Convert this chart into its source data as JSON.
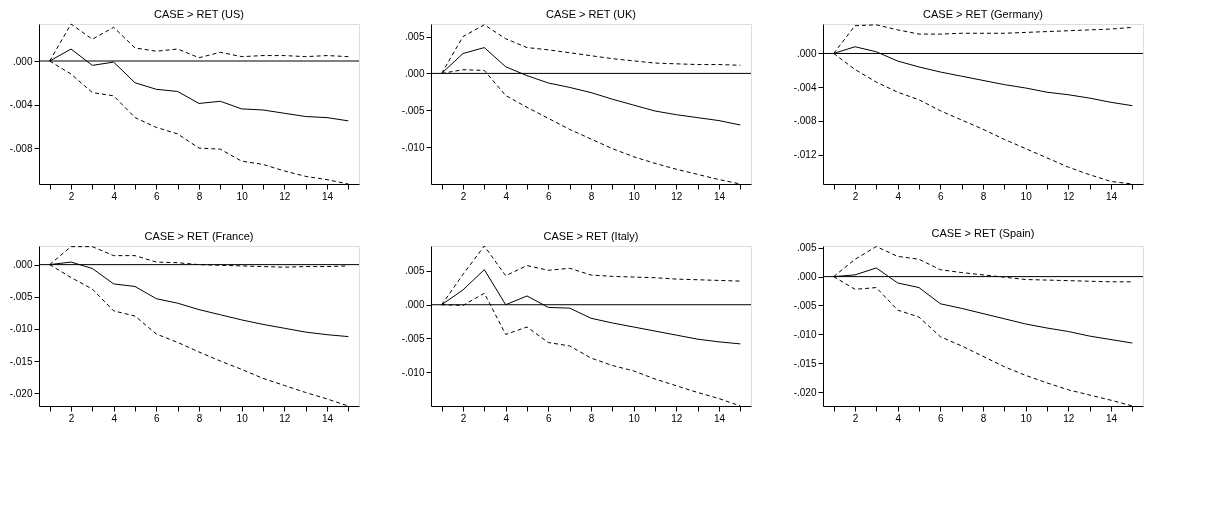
{
  "chart_data": [
    {
      "type": "line",
      "title": "CASE > RET (US)",
      "x": [
        1,
        2,
        3,
        4,
        5,
        6,
        7,
        8,
        9,
        10,
        11,
        12,
        13,
        14,
        15
      ],
      "xlim": [
        0.5,
        15.5
      ],
      "xticks": [
        {
          "value": 1,
          "label": null
        },
        2,
        {
          "value": 3,
          "label": null
        },
        4,
        {
          "value": 5,
          "label": null
        },
        6,
        {
          "value": 7,
          "label": null
        },
        8,
        {
          "value": 9,
          "label": null
        },
        10,
        {
          "value": 11,
          "label": null
        },
        12,
        {
          "value": 13,
          "label": null
        },
        14,
        {
          "value": 15,
          "label": null
        }
      ],
      "ylim": [
        -0.0113,
        0.0034
      ],
      "yticks": [
        {
          "value": 0,
          "label": ".000"
        },
        {
          "value": -0.004,
          "label": "-.004"
        },
        {
          "value": -0.008,
          "label": "-.008"
        }
      ],
      "grid": false,
      "ref_lines": [
        {
          "axis": "y",
          "value": 0,
          "label": null,
          "color": "#000000"
        }
      ],
      "series": [
        {
          "color": "#000000",
          "line_style": "solid",
          "values": [
            0,
            0.0011,
            -0.0004,
            -0.0001,
            -0.002,
            -0.0026,
            -0.0028,
            -0.0039,
            -0.0037,
            -0.0044,
            -0.0045,
            -0.0048,
            -0.0051,
            -0.0052,
            -0.0055
          ]
        },
        {
          "color": "#000000",
          "line_style": "dashed",
          "values": [
            0,
            0.0034,
            0.002,
            0.0031,
            0.0012,
            0.0009,
            0.0011,
            0.0003,
            0.0008,
            0.0004,
            0.0005,
            0.0005,
            0.0004,
            0.0005,
            0.0004
          ]
        },
        {
          "color": "#000000",
          "line_style": "dashed",
          "values": [
            0,
            -0.0012,
            -0.0029,
            -0.0032,
            -0.0052,
            -0.0061,
            -0.0067,
            -0.008,
            -0.0081,
            -0.0092,
            -0.0095,
            -0.0101,
            -0.0106,
            -0.0109,
            -0.0113
          ]
        }
      ]
    },
    {
      "type": "line",
      "title": "CASE > RET (UK)",
      "x": [
        1,
        2,
        3,
        4,
        5,
        6,
        7,
        8,
        9,
        10,
        11,
        12,
        13,
        14,
        15
      ],
      "xlim": [
        0.5,
        15.5
      ],
      "xticks": [
        {
          "value": 1,
          "label": null
        },
        2,
        {
          "value": 3,
          "label": null
        },
        4,
        {
          "value": 5,
          "label": null
        },
        6,
        {
          "value": 7,
          "label": null
        },
        8,
        {
          "value": 9,
          "label": null
        },
        10,
        {
          "value": 11,
          "label": null
        },
        12,
        {
          "value": 13,
          "label": null
        },
        14,
        {
          "value": 15,
          "label": null
        }
      ],
      "ylim": [
        -0.015,
        0.0067
      ],
      "yticks": [
        {
          "value": 0.005,
          "label": ".005"
        },
        {
          "value": 0,
          "label": ".000"
        },
        {
          "value": -0.005,
          "label": "-.005"
        },
        {
          "value": -0.01,
          "label": "-.010"
        }
      ],
      "grid": false,
      "ref_lines": [
        {
          "axis": "y",
          "value": 0,
          "label": null,
          "color": "#000000"
        }
      ],
      "series": [
        {
          "color": "#000000",
          "line_style": "solid",
          "values": [
            0,
            0.0027,
            0.0035,
            0.0009,
            -0.0003,
            -0.0013,
            -0.0019,
            -0.0026,
            -0.0035,
            -0.0043,
            -0.0051,
            -0.0056,
            -0.006,
            -0.0064,
            -0.007
          ]
        },
        {
          "color": "#000000",
          "line_style": "dashed",
          "values": [
            0,
            0.005,
            0.0066,
            0.0047,
            0.0035,
            0.0032,
            0.0028,
            0.0024,
            0.002,
            0.0017,
            0.0014,
            0.0013,
            0.0012,
            0.0012,
            0.0011
          ]
        },
        {
          "color": "#000000",
          "line_style": "dashed",
          "values": [
            0,
            0.0005,
            0.0004,
            -0.003,
            -0.0046,
            -0.0061,
            -0.0076,
            -0.0089,
            -0.0102,
            -0.0113,
            -0.0122,
            -0.013,
            -0.0137,
            -0.0144,
            -0.015
          ]
        }
      ]
    },
    {
      "type": "line",
      "title": "CASE > RET (Germany)",
      "x": [
        1,
        2,
        3,
        4,
        5,
        6,
        7,
        8,
        9,
        10,
        11,
        12,
        13,
        14,
        15
      ],
      "xlim": [
        0.5,
        15.5
      ],
      "xticks": [
        {
          "value": 1,
          "label": null
        },
        2,
        {
          "value": 3,
          "label": null
        },
        4,
        {
          "value": 5,
          "label": null
        },
        6,
        {
          "value": 7,
          "label": null
        },
        8,
        {
          "value": 9,
          "label": null
        },
        10,
        {
          "value": 11,
          "label": null
        },
        12,
        {
          "value": 13,
          "label": null
        },
        14,
        {
          "value": 15,
          "label": null
        }
      ],
      "ylim": [
        -0.0155,
        0.0035
      ],
      "yticks": [
        {
          "value": 0,
          "label": ".000"
        },
        {
          "value": -0.004,
          "label": "-.004"
        },
        {
          "value": -0.008,
          "label": "-.008"
        },
        {
          "value": -0.012,
          "label": "-.012"
        }
      ],
      "grid": false,
      "ref_lines": [
        {
          "axis": "y",
          "value": 0,
          "label": null,
          "color": "#000000"
        }
      ],
      "series": [
        {
          "color": "#000000",
          "line_style": "solid",
          "values": [
            0,
            0.0008,
            0.0002,
            -0.0009,
            -0.0016,
            -0.0022,
            -0.0027,
            -0.0032,
            -0.0037,
            -0.0041,
            -0.0046,
            -0.0049,
            -0.0053,
            -0.0058,
            -0.0062
          ]
        },
        {
          "color": "#000000",
          "line_style": "dashed",
          "values": [
            0,
            0.0033,
            0.0034,
            0.0028,
            0.0023,
            0.0023,
            0.0024,
            0.0024,
            0.0024,
            0.0025,
            0.0026,
            0.0027,
            0.0028,
            0.0029,
            0.0031
          ]
        },
        {
          "color": "#000000",
          "line_style": "dashed",
          "values": [
            0,
            -0.0019,
            -0.0034,
            -0.0046,
            -0.0055,
            -0.0068,
            -0.0079,
            -0.009,
            -0.0102,
            -0.0113,
            -0.0124,
            -0.0135,
            -0.0144,
            -0.0152,
            -0.0155
          ]
        }
      ]
    },
    {
      "type": "line",
      "title": "CASE > RET (France)",
      "x": [
        1,
        2,
        3,
        4,
        5,
        6,
        7,
        8,
        9,
        10,
        11,
        12,
        13,
        14,
        15
      ],
      "xlim": [
        0.5,
        15.5
      ],
      "xticks": [
        {
          "value": 1,
          "label": null
        },
        2,
        {
          "value": 3,
          "label": null
        },
        4,
        {
          "value": 5,
          "label": null
        },
        6,
        {
          "value": 7,
          "label": null
        },
        8,
        {
          "value": 9,
          "label": null
        },
        10,
        {
          "value": 11,
          "label": null
        },
        12,
        {
          "value": 13,
          "label": null
        },
        14,
        {
          "value": 15,
          "label": null
        }
      ],
      "ylim": [
        -0.022,
        0.0029
      ],
      "yticks": [
        {
          "value": 0,
          "label": ".000"
        },
        {
          "value": -0.005,
          "label": "-.005"
        },
        {
          "value": -0.01,
          "label": "-.010"
        },
        {
          "value": -0.015,
          "label": "-.015"
        },
        {
          "value": -0.02,
          "label": "-.020"
        }
      ],
      "grid": false,
      "ref_lines": [
        {
          "axis": "y",
          "value": 0,
          "label": null,
          "color": "#000000"
        }
      ],
      "series": [
        {
          "color": "#000000",
          "line_style": "solid",
          "values": [
            0,
            0.0004,
            -0.0006,
            -0.003,
            -0.0034,
            -0.0053,
            -0.006,
            -0.007,
            -0.0078,
            -0.0086,
            -0.0093,
            -0.0099,
            -0.0105,
            -0.0109,
            -0.0112
          ]
        },
        {
          "color": "#000000",
          "line_style": "dashed",
          "values": [
            0,
            0.0028,
            0.0028,
            0.0014,
            0.0014,
            0.0004,
            0.0003,
            0.0,
            -0.0001,
            -0.0002,
            -0.0003,
            -0.0004,
            -0.0003,
            -0.0003,
            -0.0002
          ]
        },
        {
          "color": "#000000",
          "line_style": "dashed",
          "values": [
            0,
            -0.002,
            -0.0038,
            -0.0072,
            -0.008,
            -0.0108,
            -0.0121,
            -0.0136,
            -0.015,
            -0.0163,
            -0.0177,
            -0.0188,
            -0.0199,
            -0.0209,
            -0.022
          ]
        }
      ]
    },
    {
      "type": "line",
      "title": "CASE > RET (Italy)",
      "x": [
        1,
        2,
        3,
        4,
        5,
        6,
        7,
        8,
        9,
        10,
        11,
        12,
        13,
        14,
        15
      ],
      "xlim": [
        0.5,
        15.5
      ],
      "xticks": [
        {
          "value": 1,
          "label": null
        },
        2,
        {
          "value": 3,
          "label": null
        },
        4,
        {
          "value": 5,
          "label": null
        },
        6,
        {
          "value": 7,
          "label": null
        },
        8,
        {
          "value": 9,
          "label": null
        },
        10,
        {
          "value": 11,
          "label": null
        },
        12,
        {
          "value": 13,
          "label": null
        },
        14,
        {
          "value": 15,
          "label": null
        }
      ],
      "ylim": [
        -0.015,
        0.0087
      ],
      "yticks": [
        {
          "value": 0.005,
          "label": ".005"
        },
        {
          "value": 0,
          "label": ".000"
        },
        {
          "value": -0.005,
          "label": "-.005"
        },
        {
          "value": -0.01,
          "label": "-.010"
        }
      ],
      "grid": false,
      "ref_lines": [
        {
          "axis": "y",
          "value": 0,
          "label": null,
          "color": "#000000"
        }
      ],
      "series": [
        {
          "color": "#000000",
          "line_style": "solid",
          "values": [
            0,
            0.0022,
            0.0052,
            0.0,
            0.0013,
            -0.0004,
            -0.0005,
            -0.002,
            -0.0027,
            -0.0033,
            -0.0039,
            -0.0045,
            -0.0051,
            -0.0055,
            -0.0058
          ]
        },
        {
          "color": "#000000",
          "line_style": "dashed",
          "values": [
            0,
            0.0045,
            0.0087,
            0.0043,
            0.0058,
            0.0051,
            0.0054,
            0.0044,
            0.0042,
            0.0041,
            0.004,
            0.0038,
            0.0037,
            0.0036,
            0.0035
          ]
        },
        {
          "color": "#000000",
          "line_style": "dashed",
          "values": [
            0,
            -0.0001,
            0.0017,
            -0.0044,
            -0.0033,
            -0.0056,
            -0.0061,
            -0.0079,
            -0.009,
            -0.0098,
            -0.011,
            -0.012,
            -0.013,
            -0.0139,
            -0.015
          ]
        }
      ]
    },
    {
      "type": "line",
      "title": "CASE > RET (Spain)",
      "x": [
        1,
        2,
        3,
        4,
        5,
        6,
        7,
        8,
        9,
        10,
        11,
        12,
        13,
        14,
        15
      ],
      "xlim": [
        0.5,
        15.5
      ],
      "xticks": [
        {
          "value": 1,
          "label": null
        },
        2,
        {
          "value": 3,
          "label": null
        },
        4,
        {
          "value": 5,
          "label": null
        },
        6,
        {
          "value": 7,
          "label": null
        },
        8,
        {
          "value": 9,
          "label": null
        },
        10,
        {
          "value": 11,
          "label": null
        },
        12,
        {
          "value": 13,
          "label": null
        },
        14,
        {
          "value": 15,
          "label": null
        }
      ],
      "ylim": [
        -0.0224,
        0.0053
      ],
      "yticks": [
        {
          "value": 0.005,
          "label": ".005"
        },
        {
          "value": 0,
          "label": ".000"
        },
        {
          "value": -0.005,
          "label": "-.005"
        },
        {
          "value": -0.01,
          "label": "-.010"
        },
        {
          "value": -0.015,
          "label": "-.015"
        },
        {
          "value": -0.02,
          "label": "-.020"
        }
      ],
      "grid": false,
      "ref_lines": [
        {
          "axis": "y",
          "value": 0,
          "label": null,
          "color": "#000000"
        }
      ],
      "series": [
        {
          "color": "#000000",
          "line_style": "solid",
          "values": [
            0,
            0.0003,
            0.0015,
            -0.0011,
            -0.0019,
            -0.0047,
            -0.0055,
            -0.0064,
            -0.0073,
            -0.0082,
            -0.0089,
            -0.0095,
            -0.0103,
            -0.0109,
            -0.0115
          ]
        },
        {
          "color": "#000000",
          "line_style": "dashed",
          "values": [
            0,
            0.003,
            0.0052,
            0.0035,
            0.003,
            0.0012,
            0.0007,
            0.0003,
            -0.0001,
            -0.0005,
            -0.0006,
            -0.0007,
            -0.0008,
            -0.0009,
            -0.0009
          ]
        },
        {
          "color": "#000000",
          "line_style": "dashed",
          "values": [
            0,
            -0.0022,
            -0.0019,
            -0.0058,
            -0.007,
            -0.0104,
            -0.012,
            -0.0138,
            -0.0156,
            -0.0171,
            -0.0184,
            -0.0196,
            -0.0205,
            -0.0214,
            -0.0224
          ]
        }
      ]
    }
  ]
}
